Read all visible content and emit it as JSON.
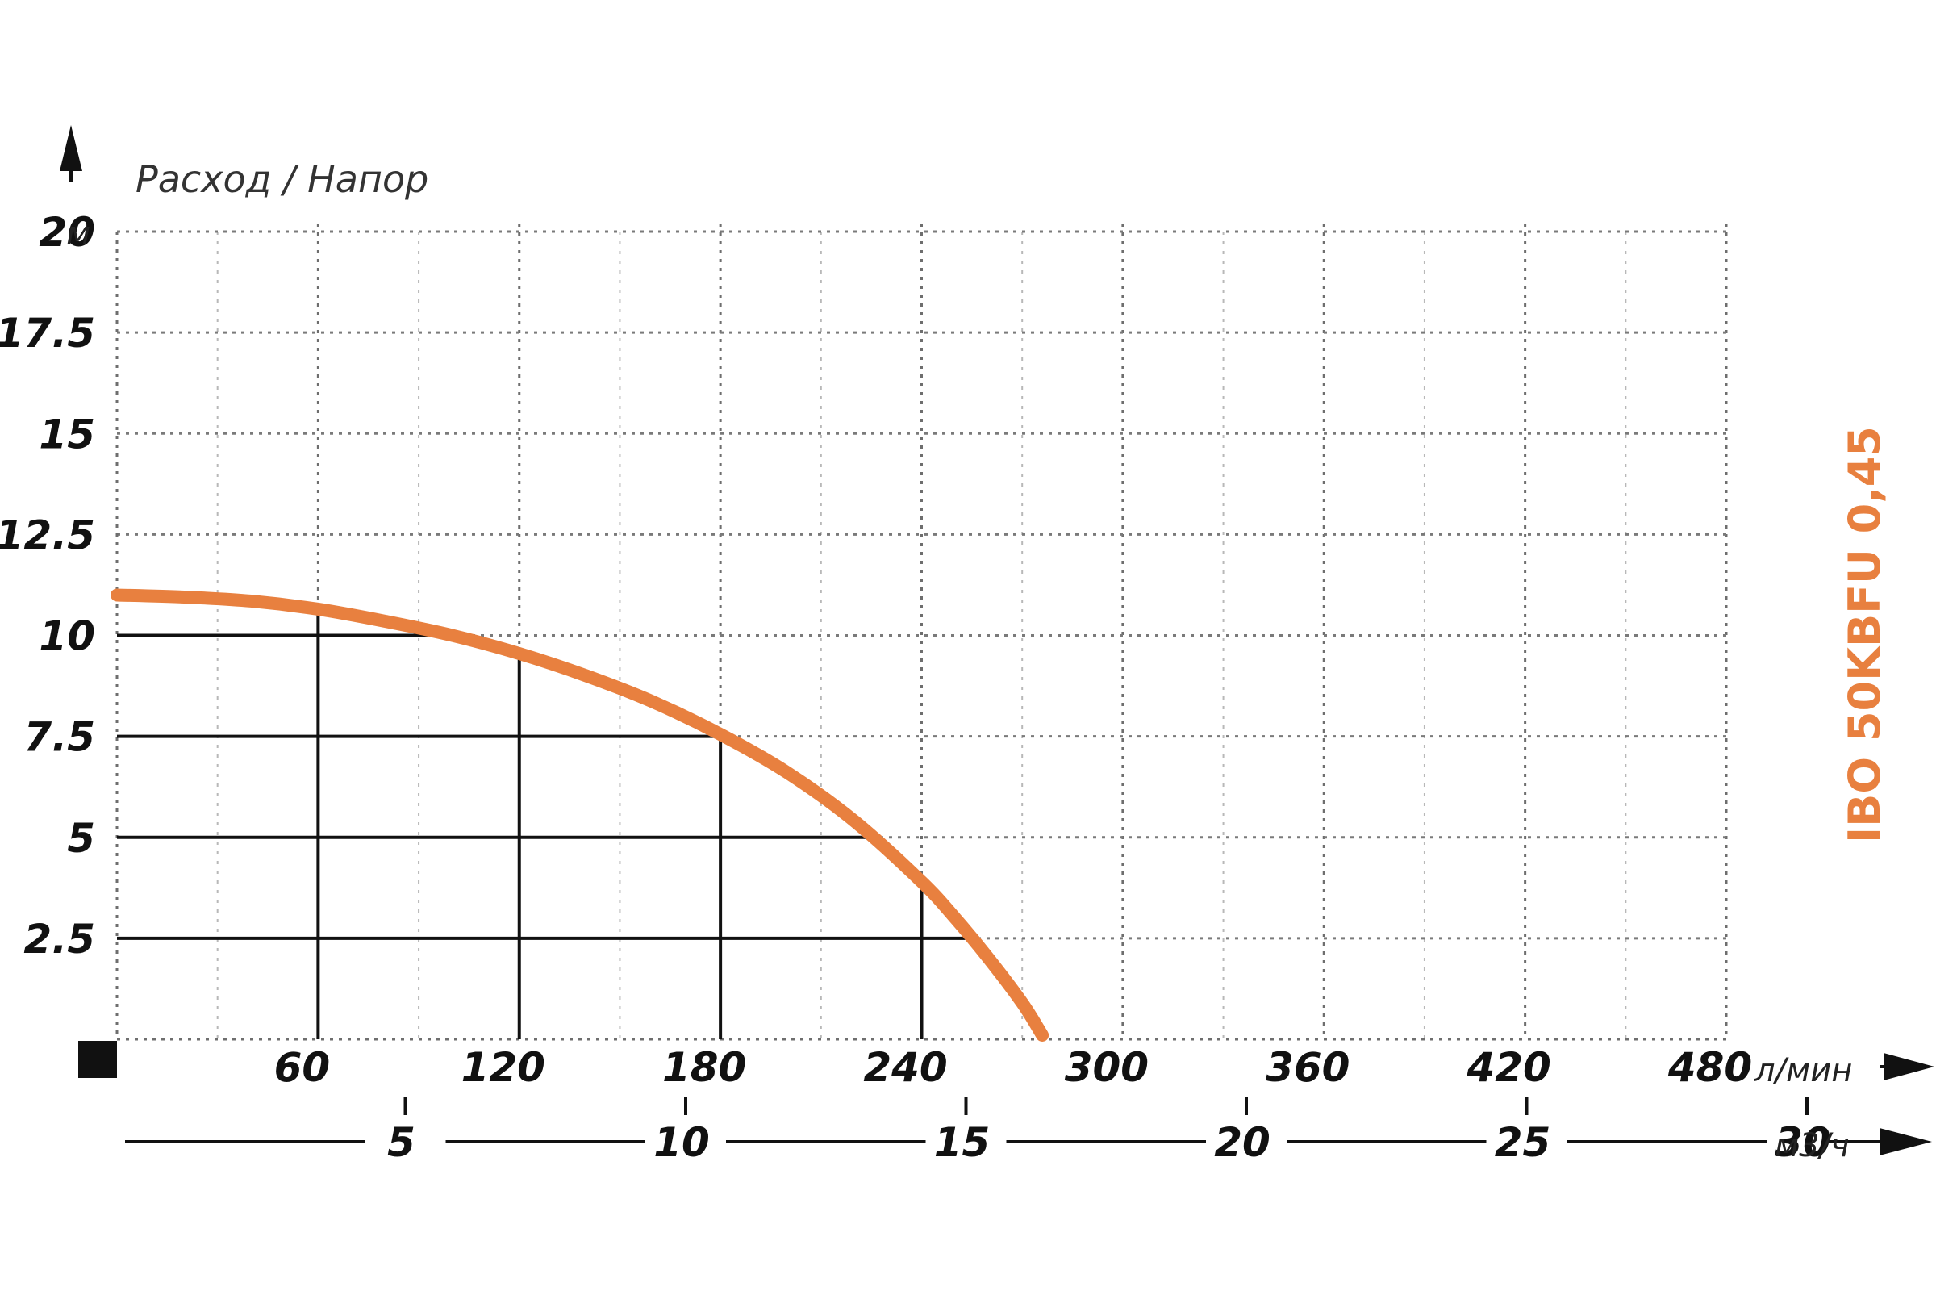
{
  "chart_data": {
    "type": "line",
    "title": "Расход / Напор",
    "series": [
      {
        "name": "IBO 50KBFU 0,45",
        "color": "#E8803F",
        "x": [
          0,
          20,
          40,
          60,
          80,
          100,
          120,
          140,
          160,
          180,
          200,
          220,
          240,
          250,
          260,
          270,
          276
        ],
        "y": [
          11.0,
          10.95,
          10.85,
          10.65,
          10.35,
          10.0,
          9.55,
          9.0,
          8.35,
          7.55,
          6.6,
          5.4,
          3.9,
          3.0,
          2.0,
          0.9,
          0.1
        ]
      }
    ],
    "y_axis": {
      "unit": "м",
      "range": [
        0,
        20
      ],
      "ticks": [
        2.5,
        5,
        7.5,
        10,
        12.5,
        15,
        17.5,
        20
      ],
      "tick_labels": [
        "2.5",
        "5",
        "7.5",
        "10",
        "12.5",
        "15",
        "17.5",
        "20"
      ]
    },
    "x_axis": {
      "unit": "л/мин",
      "range": [
        0,
        480
      ],
      "ticks": [
        60,
        120,
        180,
        240,
        300,
        360,
        420,
        480
      ],
      "tick_labels": [
        "60",
        "120",
        "180",
        "240",
        "300",
        "360",
        "420",
        "480"
      ]
    },
    "x2_axis": {
      "unit": "м3/ч",
      "range": [
        0,
        30
      ],
      "ticks": [
        5,
        10,
        15,
        20,
        25,
        30
      ],
      "tick_labels": [
        "5",
        "10",
        "15",
        "20",
        "25",
        "30"
      ]
    },
    "grid": true,
    "reference_lines": [
      {
        "x": 60,
        "y": 10
      },
      {
        "x": 120,
        "y": 7.5
      },
      {
        "x": 180,
        "y": 5
      },
      {
        "x": 240,
        "y": 2.5
      }
    ]
  }
}
